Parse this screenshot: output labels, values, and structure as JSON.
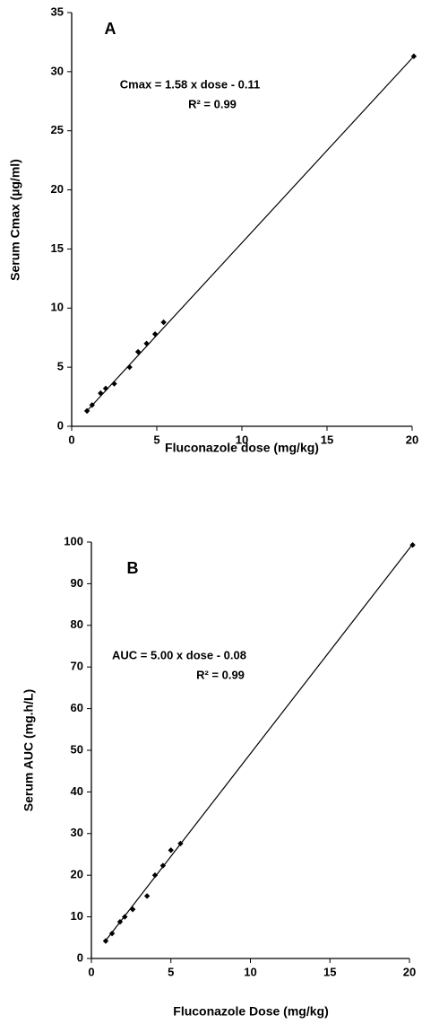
{
  "chart_data": [
    {
      "type": "scatter",
      "panel_label": "A",
      "annotations": [
        "Cmax = 1.58 x dose - 0.11",
        "R² = 0.99"
      ],
      "x_label": "Fluconazole dose (mg/kg)",
      "y_label": "Serum Cmax (µg/ml)",
      "x": [
        0.9,
        1.2,
        1.7,
        2.0,
        2.5,
        3.4,
        3.9,
        4.4,
        4.9,
        5.4,
        20.1
      ],
      "values": [
        1.3,
        1.8,
        2.8,
        3.2,
        3.6,
        5.0,
        6.3,
        7.0,
        7.8,
        8.8,
        31.3
      ],
      "regression": {
        "x": [
          0.9,
          20.1
        ],
        "y": [
          1.3,
          31.3
        ]
      },
      "color": "#000000",
      "xlim": [
        0,
        20
      ],
      "xticks": [
        0,
        5,
        10,
        15,
        20
      ],
      "ylim": [
        0,
        35
      ],
      "yticks": [
        0,
        5,
        10,
        15,
        20,
        25,
        30,
        35
      ]
    },
    {
      "type": "scatter",
      "panel_label": "B",
      "annotations": [
        "AUC = 5.00 x dose - 0.08",
        "R² = 0.99"
      ],
      "x_label": "Fluconazole Dose (mg/kg)",
      "y_label": "Serum AUC (mg.h/L)",
      "x": [
        0.9,
        1.3,
        1.8,
        2.1,
        2.6,
        3.5,
        4.0,
        4.5,
        5.0,
        5.6,
        20.2
      ],
      "values": [
        4.2,
        6.0,
        8.8,
        10.0,
        11.8,
        15.0,
        20.0,
        22.3,
        26.0,
        27.6,
        99.3
      ],
      "regression": {
        "x": [
          0.9,
          20.2
        ],
        "y": [
          4.3,
          99.5
        ]
      },
      "color": "#000000",
      "xlim": [
        0,
        20
      ],
      "xticks": [
        0,
        5,
        10,
        15,
        20
      ],
      "ylim": [
        0,
        100
      ],
      "yticks": [
        0,
        10,
        20,
        30,
        40,
        50,
        60,
        70,
        80,
        90,
        100
      ]
    }
  ]
}
